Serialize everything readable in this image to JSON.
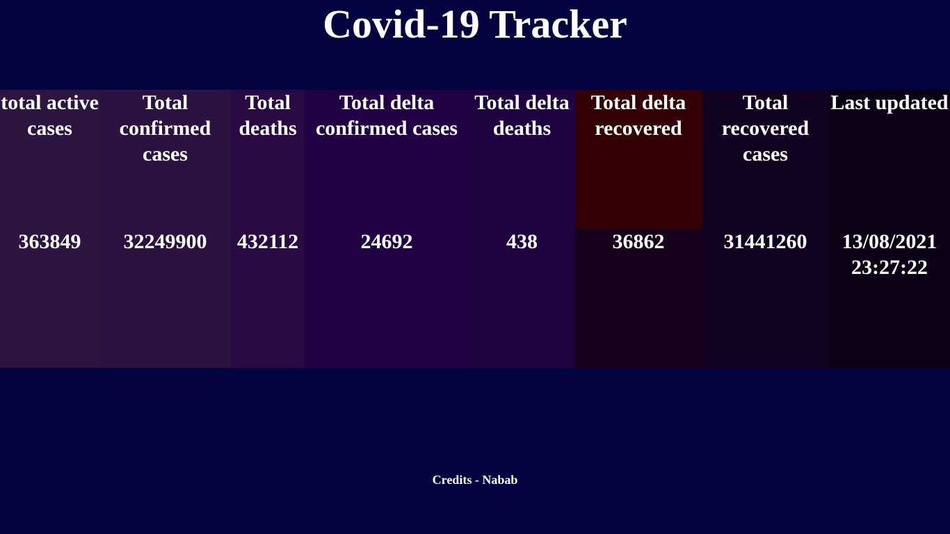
{
  "page": {
    "title": "Covid-19 Tracker",
    "credits": "Credits - Nabab"
  },
  "table": {
    "headers": [
      "total active cases",
      "Total confirmed cases",
      "Total deaths",
      "Total delta confirmed cases",
      "Total delta deaths",
      "Total delta recovered",
      "Total recovered cases",
      "Last updated"
    ],
    "values": [
      "363849",
      "32249900",
      "432112",
      "24692",
      "438",
      "36862",
      "31441260",
      "13/08/2021 23:27:22"
    ]
  },
  "colors": {
    "page_background": "#030340",
    "text": "#ffffff",
    "delta_recovered_header": "#330003"
  }
}
